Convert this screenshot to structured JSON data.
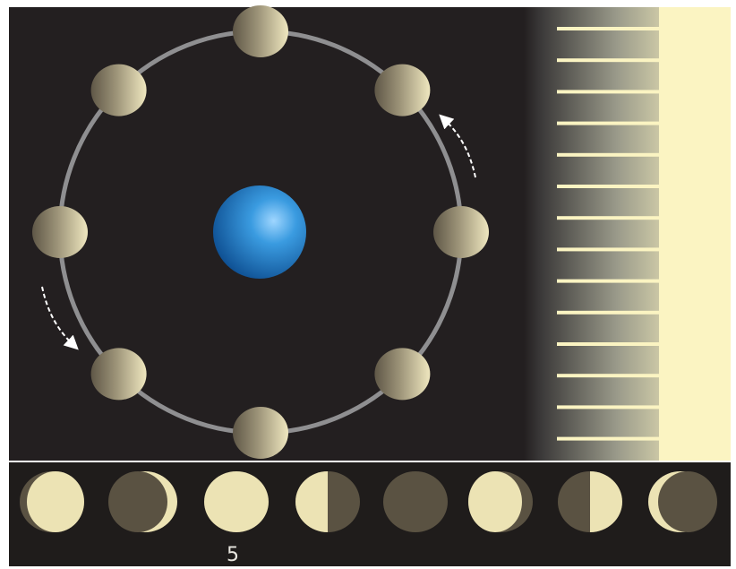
{
  "diagram": {
    "orbit_moon_count": 8,
    "phase_label": "5",
    "orbit_direction": "counterclockwise",
    "phases": [
      "light-left",
      "crescent-right",
      "full",
      "half-left",
      "new",
      "gibbous-right",
      "half-right",
      "crescent-left"
    ]
  },
  "colors": {
    "background": "#231f20",
    "lower_band": "#1f1c1b",
    "orbit": "#8f8f91",
    "moon_lit": "#ece3b4",
    "moon_dark": "#5a5242",
    "earth": "#1c7fc9",
    "sunlight": "#fbf4c2",
    "arrow": "#ffffff"
  }
}
